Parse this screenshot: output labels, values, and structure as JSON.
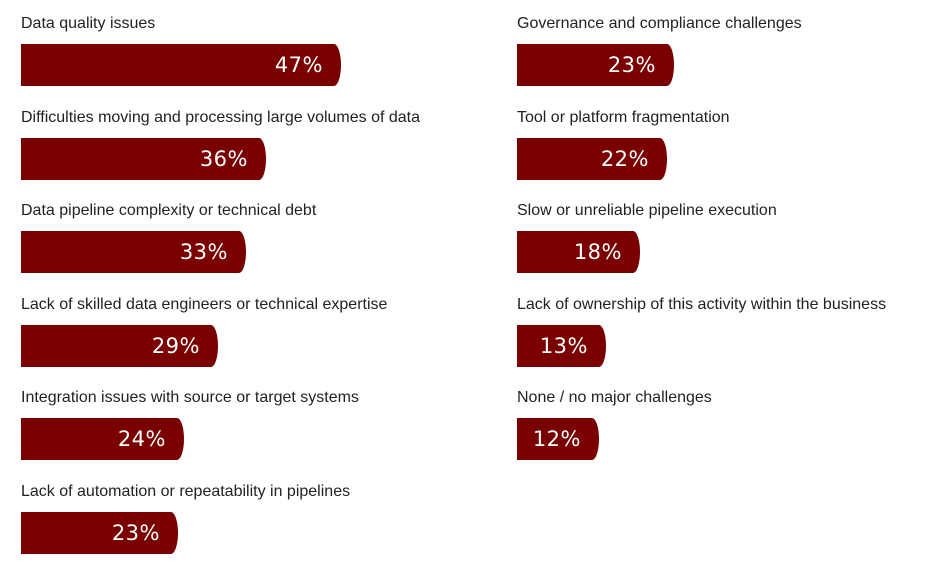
{
  "chart_data": {
    "type": "bar",
    "orientation": "horizontal",
    "unit": "%",
    "bar_color": "#7a0000",
    "label_color": "#222222",
    "value_color": "#ffffff",
    "categories": [
      "Data quality issues",
      "Difficulties moving and processing large volumes of data",
      "Data pipeline complexity or technical debt",
      "Lack of skilled data engineers or technical expertise",
      "Integration issues with source or target systems",
      "Lack of automation or repeatability in pipelines",
      "Governance and compliance challenges",
      "Tool or platform fragmentation",
      "Slow or unreliable pipeline execution",
      "Lack of ownership of this activity within the business",
      "None / no major challenges"
    ],
    "values": [
      47,
      36,
      33,
      29,
      24,
      23,
      23,
      22,
      18,
      13,
      12
    ],
    "value_labels": [
      "47%",
      "36%",
      "33%",
      "29%",
      "24%",
      "23%",
      "23%",
      "22%",
      "18%",
      "13%",
      "12%"
    ]
  }
}
